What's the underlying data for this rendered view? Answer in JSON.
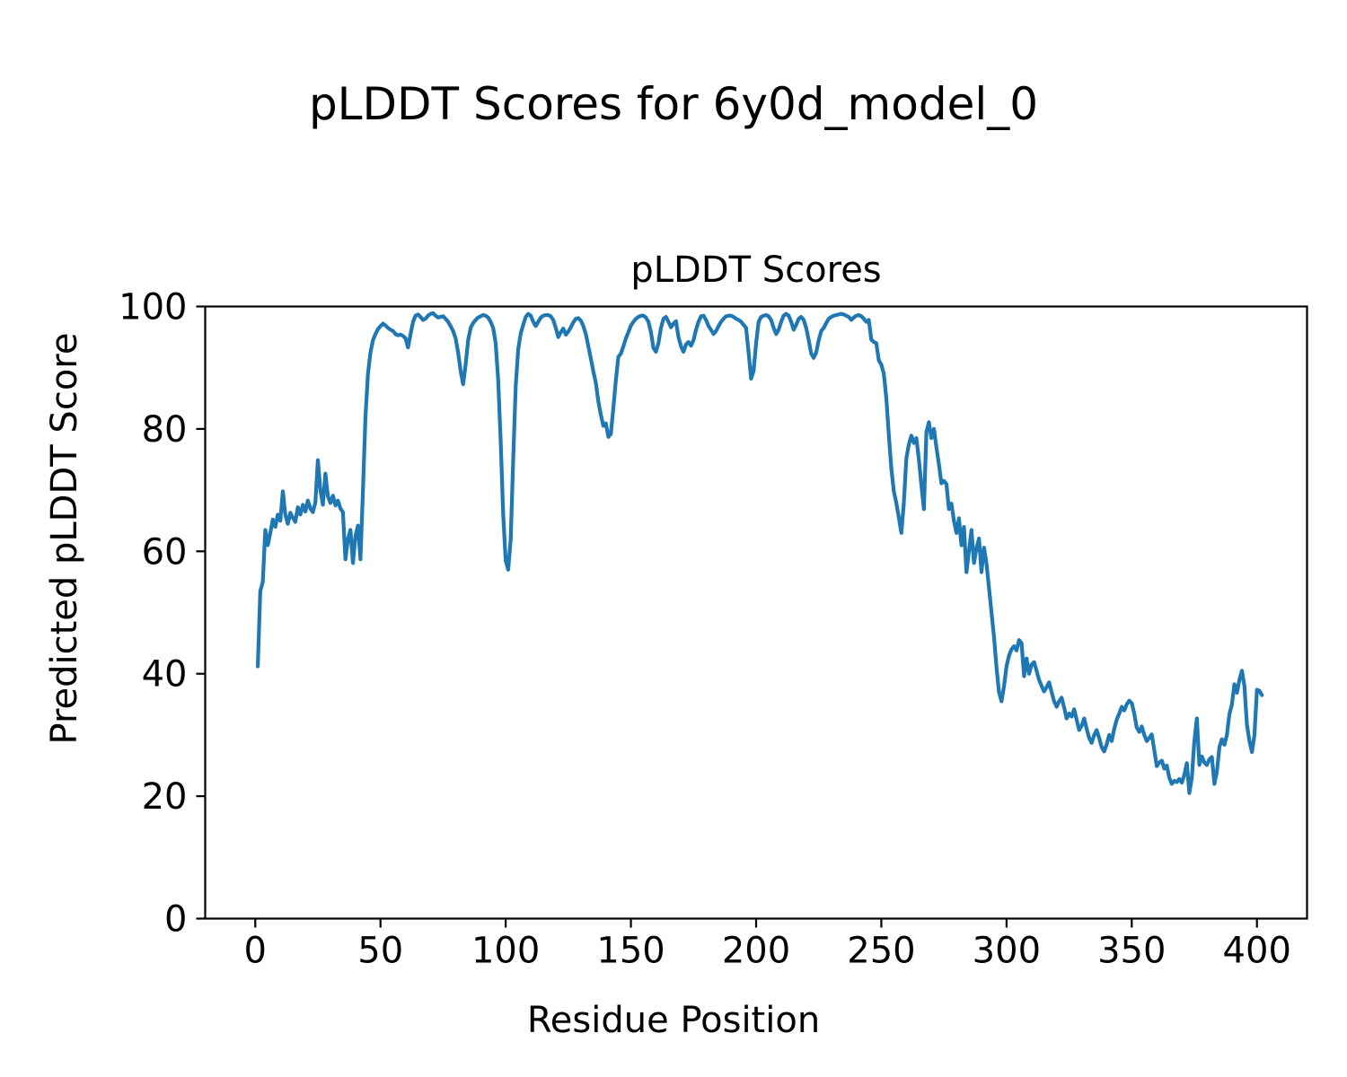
{
  "figure": {
    "suptitle": "pLDDT Scores for 6y0d_model_0"
  },
  "chart_data": {
    "type": "line",
    "suptitle": "pLDDT Scores for 6y0d_model_0",
    "title": "pLDDT Scores",
    "xlabel": "Residue Position",
    "ylabel": "Predicted pLDDT Score",
    "xlim": [
      -20,
      420
    ],
    "ylim": [
      0,
      100
    ],
    "x_ticks": [
      0,
      50,
      100,
      150,
      200,
      250,
      300,
      350,
      400
    ],
    "y_ticks": [
      0,
      20,
      40,
      60,
      80,
      100
    ],
    "grid": false,
    "legend": null,
    "line_color": "#1f77b4",
    "line_width": 4.2,
    "series": [
      {
        "name": "pLDDT",
        "x_start": 1,
        "x_step": 1,
        "values": [
          41.2,
          53.5,
          55.0,
          63.5,
          61.0,
          63.0,
          65.2,
          64.0,
          66.0,
          65.0,
          69.8,
          66.0,
          64.5,
          66.3,
          65.5,
          64.8,
          67.2,
          66.0,
          67.6,
          66.5,
          68.3,
          67.0,
          66.4,
          68.0,
          74.9,
          70.0,
          67.6,
          72.7,
          69.0,
          67.9,
          69.1,
          67.5,
          68.3,
          67.0,
          66.4,
          58.7,
          62.0,
          63.5,
          58.1,
          62.5,
          64.2,
          58.7,
          70.0,
          82.0,
          89.0,
          92.5,
          94.5,
          95.5,
          96.3,
          96.8,
          97.2,
          96.9,
          96.5,
          96.2,
          96.0,
          95.5,
          95.3,
          95.4,
          95.2,
          94.8,
          93.3,
          95.5,
          97.5,
          98.5,
          98.7,
          98.3,
          97.8,
          98.0,
          98.5,
          98.8,
          98.9,
          98.5,
          98.2,
          98.3,
          98.4,
          98.0,
          97.5,
          96.8,
          96.0,
          94.8,
          92.5,
          89.5,
          87.3,
          90.5,
          94.5,
          96.5,
          97.3,
          97.8,
          98.2,
          98.4,
          98.6,
          98.5,
          98.2,
          97.5,
          96.5,
          94.0,
          88.0,
          78.0,
          66.0,
          58.5,
          57.0,
          62.0,
          75.0,
          87.0,
          93.0,
          95.6,
          97.0,
          98.3,
          98.8,
          98.5,
          97.5,
          96.8,
          97.5,
          98.2,
          98.5,
          98.6,
          98.6,
          98.4,
          97.8,
          96.5,
          95.0,
          95.8,
          96.4,
          95.4,
          95.9,
          96.6,
          97.4,
          98.0,
          98.1,
          97.7,
          96.8,
          95.5,
          93.5,
          91.5,
          89.4,
          87.5,
          84.5,
          82.3,
          80.5,
          80.9,
          78.7,
          79.2,
          83.5,
          88.0,
          91.8,
          92.3,
          93.5,
          94.8,
          95.8,
          96.9,
          97.5,
          98.0,
          98.3,
          98.5,
          98.5,
          98.2,
          97.5,
          95.8,
          93.2,
          92.6,
          94.0,
          96.5,
          98.0,
          98.3,
          97.5,
          96.6,
          97.2,
          97.6,
          95.0,
          93.5,
          92.6,
          93.8,
          94.2,
          93.6,
          94.5,
          96.2,
          97.5,
          98.4,
          98.5,
          97.8,
          96.8,
          96.2,
          95.5,
          96.0,
          96.8,
          97.5,
          98.0,
          98.4,
          98.5,
          98.5,
          98.3,
          98.0,
          97.8,
          97.5,
          97.0,
          96.5,
          92.5,
          88.2,
          89.5,
          94.0,
          97.5,
          98.3,
          98.5,
          98.6,
          98.4,
          97.8,
          96.5,
          95.5,
          96.2,
          97.5,
          98.5,
          98.8,
          98.5,
          97.5,
          96.2,
          97.0,
          98.0,
          98.3,
          97.8,
          96.5,
          94.5,
          92.3,
          91.6,
          92.5,
          94.5,
          96.0,
          96.5,
          97.3,
          98.0,
          98.3,
          98.5,
          98.6,
          98.7,
          98.8,
          98.7,
          98.5,
          98.3,
          97.8,
          98.2,
          98.5,
          98.6,
          98.4,
          98.0,
          97.5,
          97.8,
          94.6,
          94.2,
          94.0,
          91.2,
          90.5,
          89.0,
          85.0,
          79.0,
          73.5,
          69.8,
          67.9,
          65.5,
          63.0,
          68.0,
          75.2,
          77.5,
          78.9,
          77.7,
          78.5,
          75.0,
          70.8,
          66.9,
          79.5,
          81.1,
          78.5,
          80.0,
          77.0,
          74.2,
          71.1,
          71.5,
          71.0,
          66.9,
          67.8,
          65.0,
          63.0,
          65.4,
          61.0,
          64.0,
          56.6,
          60.0,
          63.5,
          58.1,
          60.5,
          62.1,
          56.6,
          60.6,
          58.0,
          54.0,
          50.0,
          46.0,
          41.0,
          37.0,
          35.5,
          38.0,
          41.2,
          43.0,
          44.0,
          44.5,
          43.8,
          45.5,
          45.0,
          39.6,
          42.5,
          40.0,
          41.5,
          41.9,
          40.5,
          39.0,
          38.0,
          37.1,
          37.8,
          38.6,
          37.0,
          35.5,
          34.6,
          35.5,
          36.1,
          34.5,
          32.7,
          33.5,
          33.0,
          34.2,
          32.5,
          30.8,
          31.5,
          32.7,
          31.0,
          29.5,
          28.7,
          30.0,
          30.8,
          29.5,
          28.0,
          27.3,
          28.5,
          30.0,
          29.0,
          31.0,
          32.5,
          33.5,
          34.6,
          34.0,
          35.0,
          35.6,
          35.2,
          33.5,
          31.2,
          30.5,
          31.4,
          30.0,
          29.0,
          29.5,
          30.1,
          27.5,
          24.9,
          25.5,
          25.8,
          24.5,
          25.0,
          23.0,
          22.0,
          22.5,
          22.3,
          22.8,
          22.2,
          23.5,
          25.4,
          20.5,
          23.0,
          29.0,
          32.7,
          25.1,
          26.5,
          25.5,
          25.1,
          26.0,
          26.4,
          22.0,
          24.0,
          28.0,
          29.3,
          28.4,
          30.0,
          33.4,
          35.0,
          38.3,
          36.9,
          39.0,
          40.5,
          38.0,
          31.7,
          29.0,
          27.2,
          30.0,
          37.4,
          37.2,
          36.5
        ]
      }
    ]
  }
}
